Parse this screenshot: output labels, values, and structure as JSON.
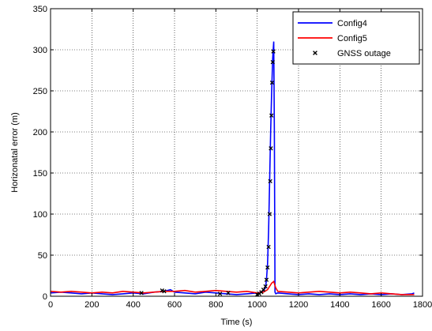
{
  "chart_data": {
    "type": "line",
    "title": "",
    "xlabel": "Time (s)",
    "ylabel": "Horizonatal error (m)",
    "xlim": [
      0,
      1800
    ],
    "ylim": [
      0,
      350
    ],
    "xticks": [
      0,
      200,
      400,
      600,
      800,
      1000,
      1200,
      1400,
      1600,
      1800
    ],
    "yticks": [
      0,
      50,
      100,
      150,
      200,
      250,
      300,
      350
    ],
    "grid": true,
    "legend_position": "top-right",
    "series": [
      {
        "name": "Config4",
        "color": "#0000ff",
        "marker": "none",
        "x": [
          0,
          50,
          100,
          150,
          200,
          250,
          300,
          350,
          400,
          450,
          500,
          550,
          580,
          600,
          650,
          700,
          750,
          800,
          850,
          900,
          950,
          1000,
          1020,
          1030,
          1040,
          1045,
          1050,
          1055,
          1060,
          1065,
          1070,
          1075,
          1080,
          1083,
          1086,
          1090,
          1100,
          1150,
          1200,
          1250,
          1300,
          1350,
          1400,
          1450,
          1500,
          1550,
          1600,
          1650,
          1700,
          1750,
          1760
        ],
        "y": [
          4,
          5,
          4,
          3,
          4,
          3,
          2,
          3,
          4,
          3,
          5,
          6,
          8,
          5,
          4,
          3,
          5,
          4,
          3,
          2,
          3,
          4,
          5,
          7,
          10,
          20,
          40,
          80,
          140,
          200,
          250,
          290,
          310,
          200,
          5,
          3,
          4,
          3,
          2,
          3,
          2,
          3,
          2,
          3,
          2,
          3,
          2,
          3,
          2,
          3,
          4
        ]
      },
      {
        "name": "Config5",
        "color": "#ff0000",
        "marker": "none",
        "x": [
          0,
          50,
          100,
          150,
          200,
          250,
          300,
          350,
          400,
          450,
          500,
          550,
          600,
          650,
          700,
          750,
          800,
          850,
          900,
          950,
          1000,
          1030,
          1050,
          1060,
          1070,
          1080,
          1090,
          1100,
          1150,
          1200,
          1250,
          1300,
          1350,
          1400,
          1450,
          1500,
          1550,
          1600,
          1650,
          1700,
          1750,
          1760
        ],
        "y": [
          6,
          5,
          6,
          5,
          4,
          5,
          4,
          6,
          5,
          4,
          5,
          6,
          6,
          7,
          5,
          6,
          7,
          6,
          5,
          6,
          4,
          5,
          8,
          12,
          16,
          18,
          10,
          6,
          5,
          4,
          5,
          6,
          5,
          4,
          5,
          4,
          3,
          4,
          3,
          2,
          2,
          2
        ]
      },
      {
        "name": "GNSS outage",
        "color": "#000000",
        "marker": "x",
        "x": [
          440,
          540,
          550,
          820,
          860,
          1000,
          1010,
          1020,
          1030,
          1040,
          1045,
          1050,
          1055,
          1060,
          1063,
          1066,
          1069,
          1072,
          1075,
          1078
        ],
        "y": [
          4,
          7,
          6,
          3,
          4,
          2,
          3,
          5,
          8,
          12,
          20,
          35,
          60,
          100,
          140,
          180,
          220,
          260,
          285,
          298
        ]
      }
    ]
  }
}
